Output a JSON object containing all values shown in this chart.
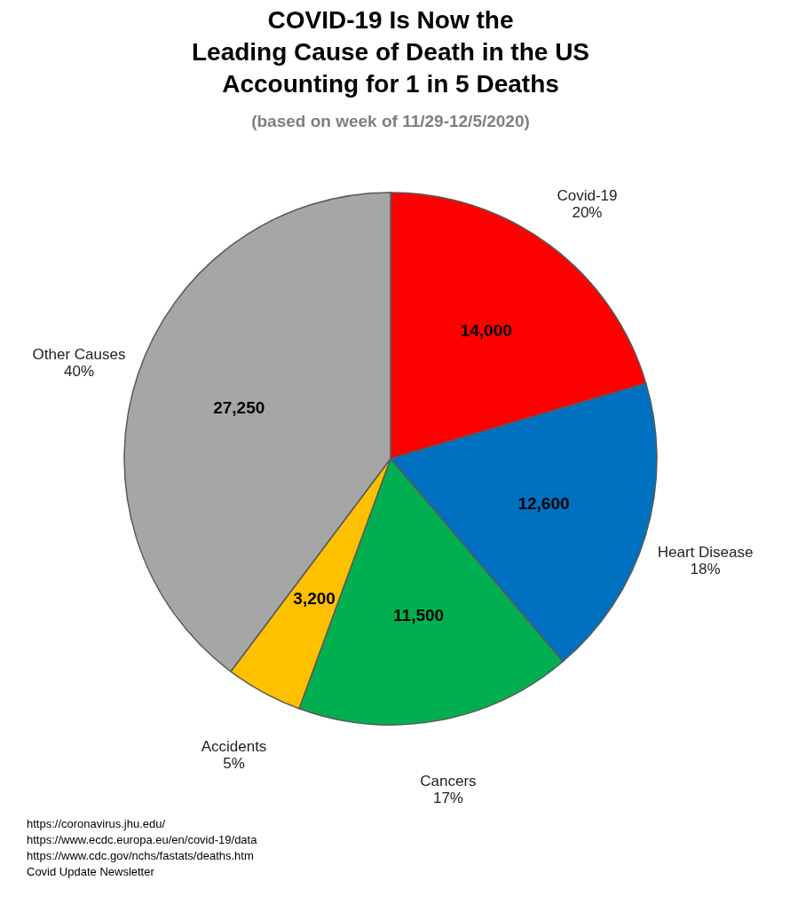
{
  "chart_data": {
    "type": "pie",
    "title": "COVID-19 Is Now the\nLeading Cause of Death in the US\nAccounting for 1 in 5 Deaths",
    "subtitle": "(based on week of 11/29-12/5/2020)",
    "categories": [
      "Covid-19",
      "Heart Disease",
      "Cancers",
      "Accidents",
      "Other Causes"
    ],
    "values": [
      14000,
      12600,
      11500,
      3200,
      27250
    ],
    "colors": [
      "#ff0000",
      "#0070c0",
      "#00b050",
      "#ffc000",
      "#a6a6a6"
    ],
    "value_labels": [
      "14,000",
      "12,600",
      "11,500",
      "3,200",
      "27,250"
    ],
    "legend": false,
    "annotations": [
      {
        "text": "20%",
        "x": "Covid-19"
      },
      {
        "text": "18%",
        "x": "Heart Disease"
      },
      {
        "text": "17%",
        "x": "Cancers"
      },
      {
        "text": "5%",
        "x": "Accidents"
      },
      {
        "text": "40%",
        "x": "Other Causes"
      },
      "https://coronavirus.jhu.edu/",
      "https://www.ecdc.europa.eu/en/covid-19/data",
      "https://www.cdc.gov/nchs/fastats/deaths.htm",
      "Covid Update Newsletter"
    ]
  }
}
